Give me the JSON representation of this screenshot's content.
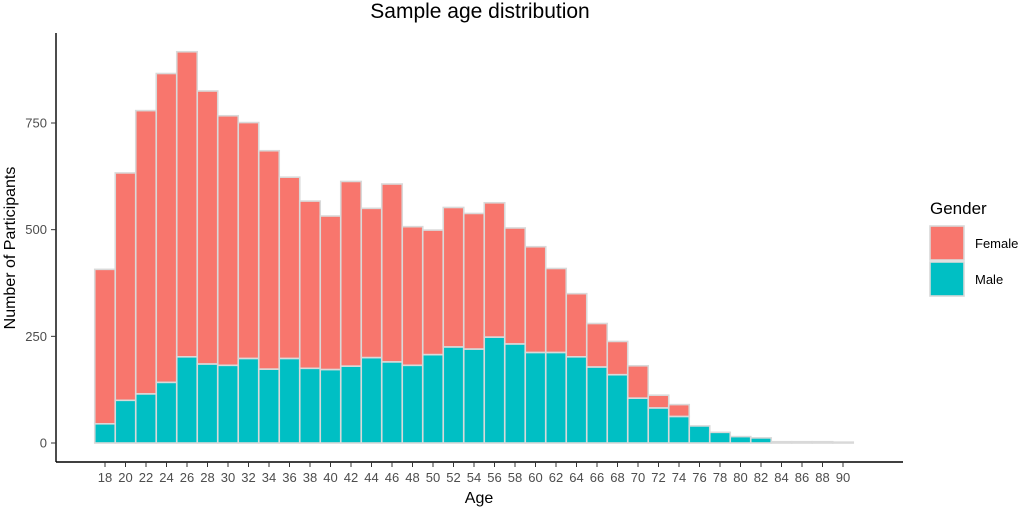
{
  "chart_data": {
    "type": "bar",
    "stacked": true,
    "title": "Sample age distribution",
    "xlabel": "Age",
    "ylabel": "Number of Participants",
    "ylim": [
      0,
      950
    ],
    "yticks": [
      0,
      250,
      500,
      750
    ],
    "grid": false,
    "legend": {
      "title": "Gender",
      "placement": "right",
      "entries": [
        "Female",
        "Male"
      ]
    },
    "categories": [
      "18",
      "20",
      "22",
      "24",
      "26",
      "28",
      "30",
      "32",
      "34",
      "36",
      "38",
      "40",
      "42",
      "44",
      "46",
      "48",
      "50",
      "52",
      "54",
      "56",
      "58",
      "60",
      "62",
      "64",
      "66",
      "68",
      "70",
      "72",
      "74",
      "76",
      "78",
      "80",
      "82",
      "84",
      "86",
      "88",
      "90"
    ],
    "series": [
      {
        "name": "Male",
        "color": "#00bfc4",
        "values": [
          45,
          100,
          115,
          142,
          202,
          185,
          182,
          198,
          173,
          198,
          175,
          172,
          180,
          200,
          190,
          182,
          207,
          225,
          220,
          248,
          232,
          212,
          212,
          202,
          178,
          160,
          105,
          82,
          62,
          40,
          25,
          15,
          12,
          3,
          3,
          3,
          2
        ]
      },
      {
        "name": "Female",
        "color": "#f8766d",
        "values": [
          362,
          533,
          664,
          724,
          715,
          640,
          585,
          553,
          512,
          425,
          392,
          360,
          433,
          350,
          417,
          325,
          292,
          327,
          318,
          315,
          272,
          248,
          197,
          148,
          102,
          78,
          76,
          30,
          28,
          0,
          0,
          0,
          0,
          0,
          0,
          0,
          0
        ]
      }
    ]
  }
}
